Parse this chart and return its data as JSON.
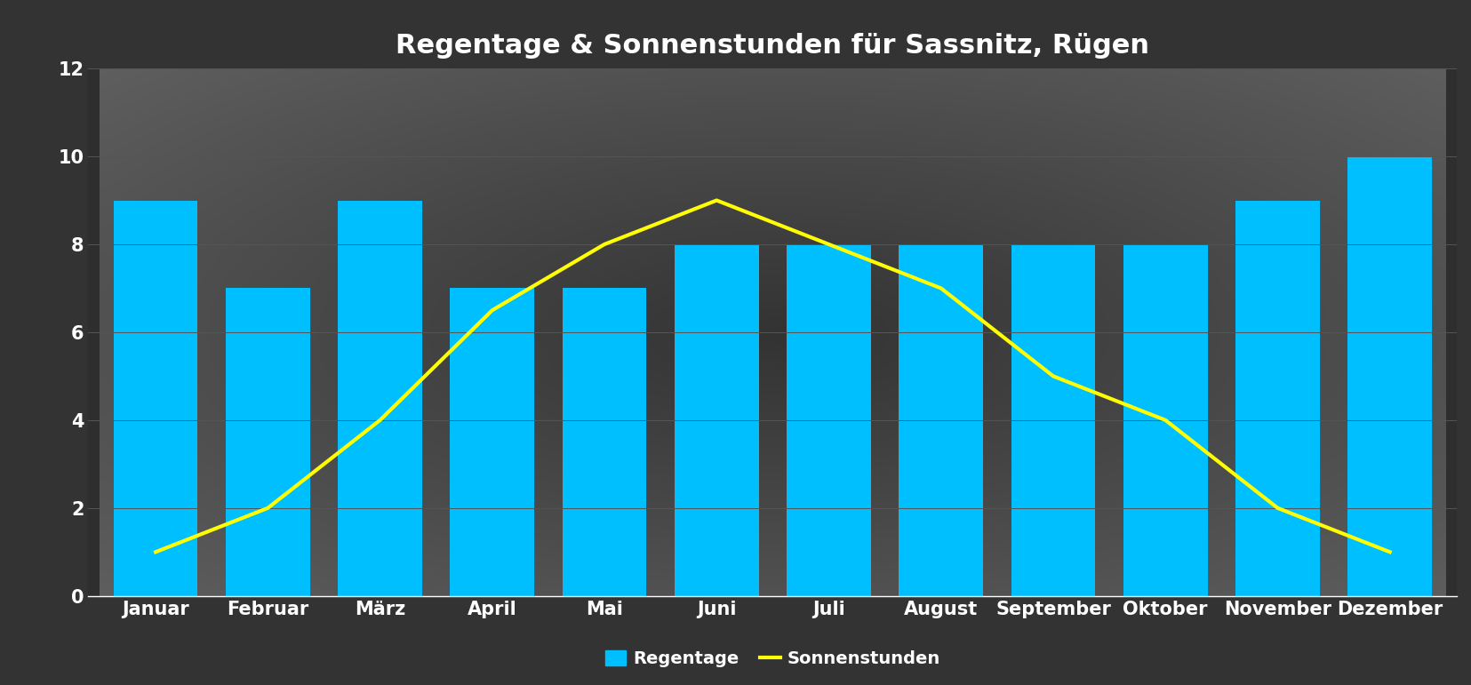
{
  "title": "Regentage & Sonnenstunden für Sassnitz, Rügen",
  "months": [
    "Januar",
    "Februar",
    "März",
    "April",
    "Mai",
    "Juni",
    "Juli",
    "August",
    "September",
    "Oktober",
    "November",
    "Dezember"
  ],
  "regentage": [
    9,
    7,
    9,
    7,
    7,
    8,
    8,
    8,
    8,
    8,
    9,
    10
  ],
  "sonnenstunden": [
    1,
    2,
    4,
    6.5,
    8,
    9,
    8,
    7,
    5,
    4,
    2,
    1
  ],
  "bar_color": "#00BFFF",
  "line_color": "#FFFF00",
  "bg_outer_color": "#4a4a4a",
  "bg_inner_color": "#2a2a2a",
  "axes_background_color": "#333333",
  "title_color": "#FFFFFF",
  "tick_color": "#FFFFFF",
  "label_color": "#FFFFFF",
  "grid_color": "#555555",
  "ylim": [
    0,
    12
  ],
  "yticks": [
    0,
    2,
    4,
    6,
    8,
    10,
    12
  ],
  "title_fontsize": 22,
  "tick_fontsize": 15,
  "legend_fontsize": 14,
  "line_width": 3.0,
  "bar_width": 0.75,
  "legend_bar_label": "Regentage",
  "legend_line_label": "Sonnenstunden"
}
